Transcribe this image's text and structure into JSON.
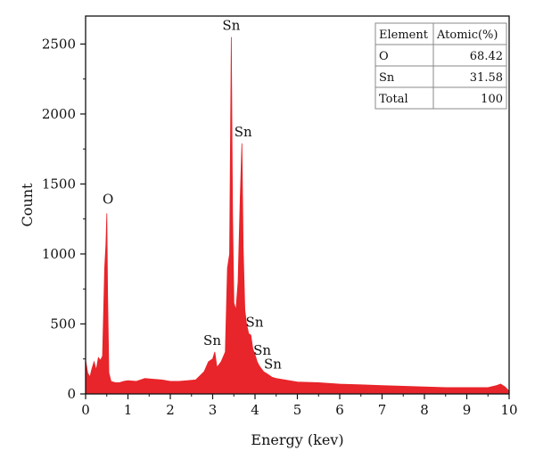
{
  "chart_data": {
    "type": "area",
    "xlabel": "Energy (kev)",
    "ylabel": "Count",
    "xlim": [
      0,
      10
    ],
    "ylim": [
      0,
      2700
    ],
    "x_ticks": [
      "0",
      "1",
      "2",
      "3",
      "4",
      "5",
      "6",
      "7",
      "8",
      "9",
      "10"
    ],
    "y_ticks": [
      "0",
      "500",
      "1000",
      "1500",
      "2000",
      "2500"
    ],
    "grid": false,
    "fill_color": "#e8252a",
    "series": [
      {
        "x": [
          0,
          0.05,
          0.1,
          0.15,
          0.2,
          0.25,
          0.3,
          0.35,
          0.4,
          0.45,
          0.48,
          0.5,
          0.52,
          0.55,
          0.6,
          0.7,
          0.8,
          0.9,
          1.0,
          1.2,
          1.4,
          1.6,
          1.8,
          2.0,
          2.2,
          2.4,
          2.6,
          2.8,
          2.9,
          3.0,
          3.05,
          3.1,
          3.2,
          3.3,
          3.35,
          3.4,
          3.44,
          3.47,
          3.5,
          3.55,
          3.6,
          3.65,
          3.69,
          3.72,
          3.76,
          3.8,
          3.85,
          3.9,
          3.95,
          4.0,
          4.05,
          4.1,
          4.2,
          4.3,
          4.4,
          4.5,
          4.7,
          5.0,
          5.5,
          6.0,
          6.5,
          7.0,
          7.5,
          8.0,
          8.5,
          9.0,
          9.5,
          9.7,
          9.8,
          9.9,
          10.0
        ],
        "values": [
          240,
          150,
          120,
          180,
          230,
          170,
          260,
          240,
          270,
          900,
          1070,
          1290,
          700,
          150,
          90,
          80,
          80,
          90,
          95,
          90,
          110,
          105,
          100,
          90,
          90,
          95,
          100,
          160,
          230,
          250,
          300,
          190,
          230,
          300,
          900,
          1000,
          2550,
          1300,
          650,
          600,
          800,
          1400,
          1790,
          1050,
          600,
          500,
          430,
          420,
          320,
          280,
          230,
          200,
          160,
          140,
          120,
          110,
          100,
          85,
          80,
          70,
          65,
          60,
          55,
          50,
          45,
          45,
          45,
          60,
          70,
          50,
          20
        ]
      }
    ],
    "peak_labels": [
      {
        "text": "O",
        "x": 0.53,
        "y": 1360
      },
      {
        "text": "Sn",
        "x": 3.44,
        "y": 2600
      },
      {
        "text": "Sn",
        "x": 3.72,
        "y": 1840
      },
      {
        "text": "Sn",
        "x": 2.99,
        "y": 350
      },
      {
        "text": "Sn",
        "x": 3.99,
        "y": 480
      },
      {
        "text": "Sn",
        "x": 4.17,
        "y": 280
      },
      {
        "text": "Sn",
        "x": 4.42,
        "y": 180
      }
    ],
    "table": {
      "headers": [
        "Element",
        "Atomic(%)"
      ],
      "rows": [
        [
          "O",
          "68.42"
        ],
        [
          "Sn",
          "31.58"
        ],
        [
          "Total",
          "100"
        ]
      ]
    }
  }
}
